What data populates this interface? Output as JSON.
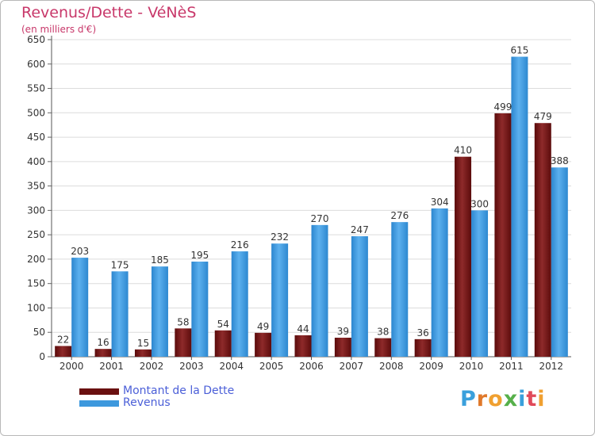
{
  "title": "Revenus/Dette - VéNèS",
  "subtitle": "(en milliers d'€)",
  "legend": {
    "debt_label": "Montant de la Dette",
    "revenue_label": "Revenus"
  },
  "logo_text": "Proxiti",
  "colors": {
    "debt": "#7a1818",
    "revenue": "#3d98dd",
    "title": "#c8386a",
    "legend_text": "#4b5fd8"
  },
  "chart_data": {
    "type": "bar",
    "categories": [
      "2000",
      "2001",
      "2002",
      "2003",
      "2004",
      "2005",
      "2006",
      "2007",
      "2008",
      "2009",
      "2010",
      "2011",
      "2012"
    ],
    "series": [
      {
        "name": "Montant de la Dette",
        "values": [
          22,
          16,
          15,
          58,
          54,
          49,
          44,
          39,
          38,
          36,
          410,
          499,
          479
        ]
      },
      {
        "name": "Revenus",
        "values": [
          203,
          175,
          185,
          195,
          216,
          232,
          270,
          247,
          276,
          304,
          300,
          615,
          388
        ]
      }
    ],
    "yticks": [
      0,
      50,
      100,
      150,
      200,
      250,
      300,
      350,
      400,
      450,
      500,
      550,
      600,
      650
    ],
    "ylim": [
      0,
      650
    ],
    "grid": true
  }
}
